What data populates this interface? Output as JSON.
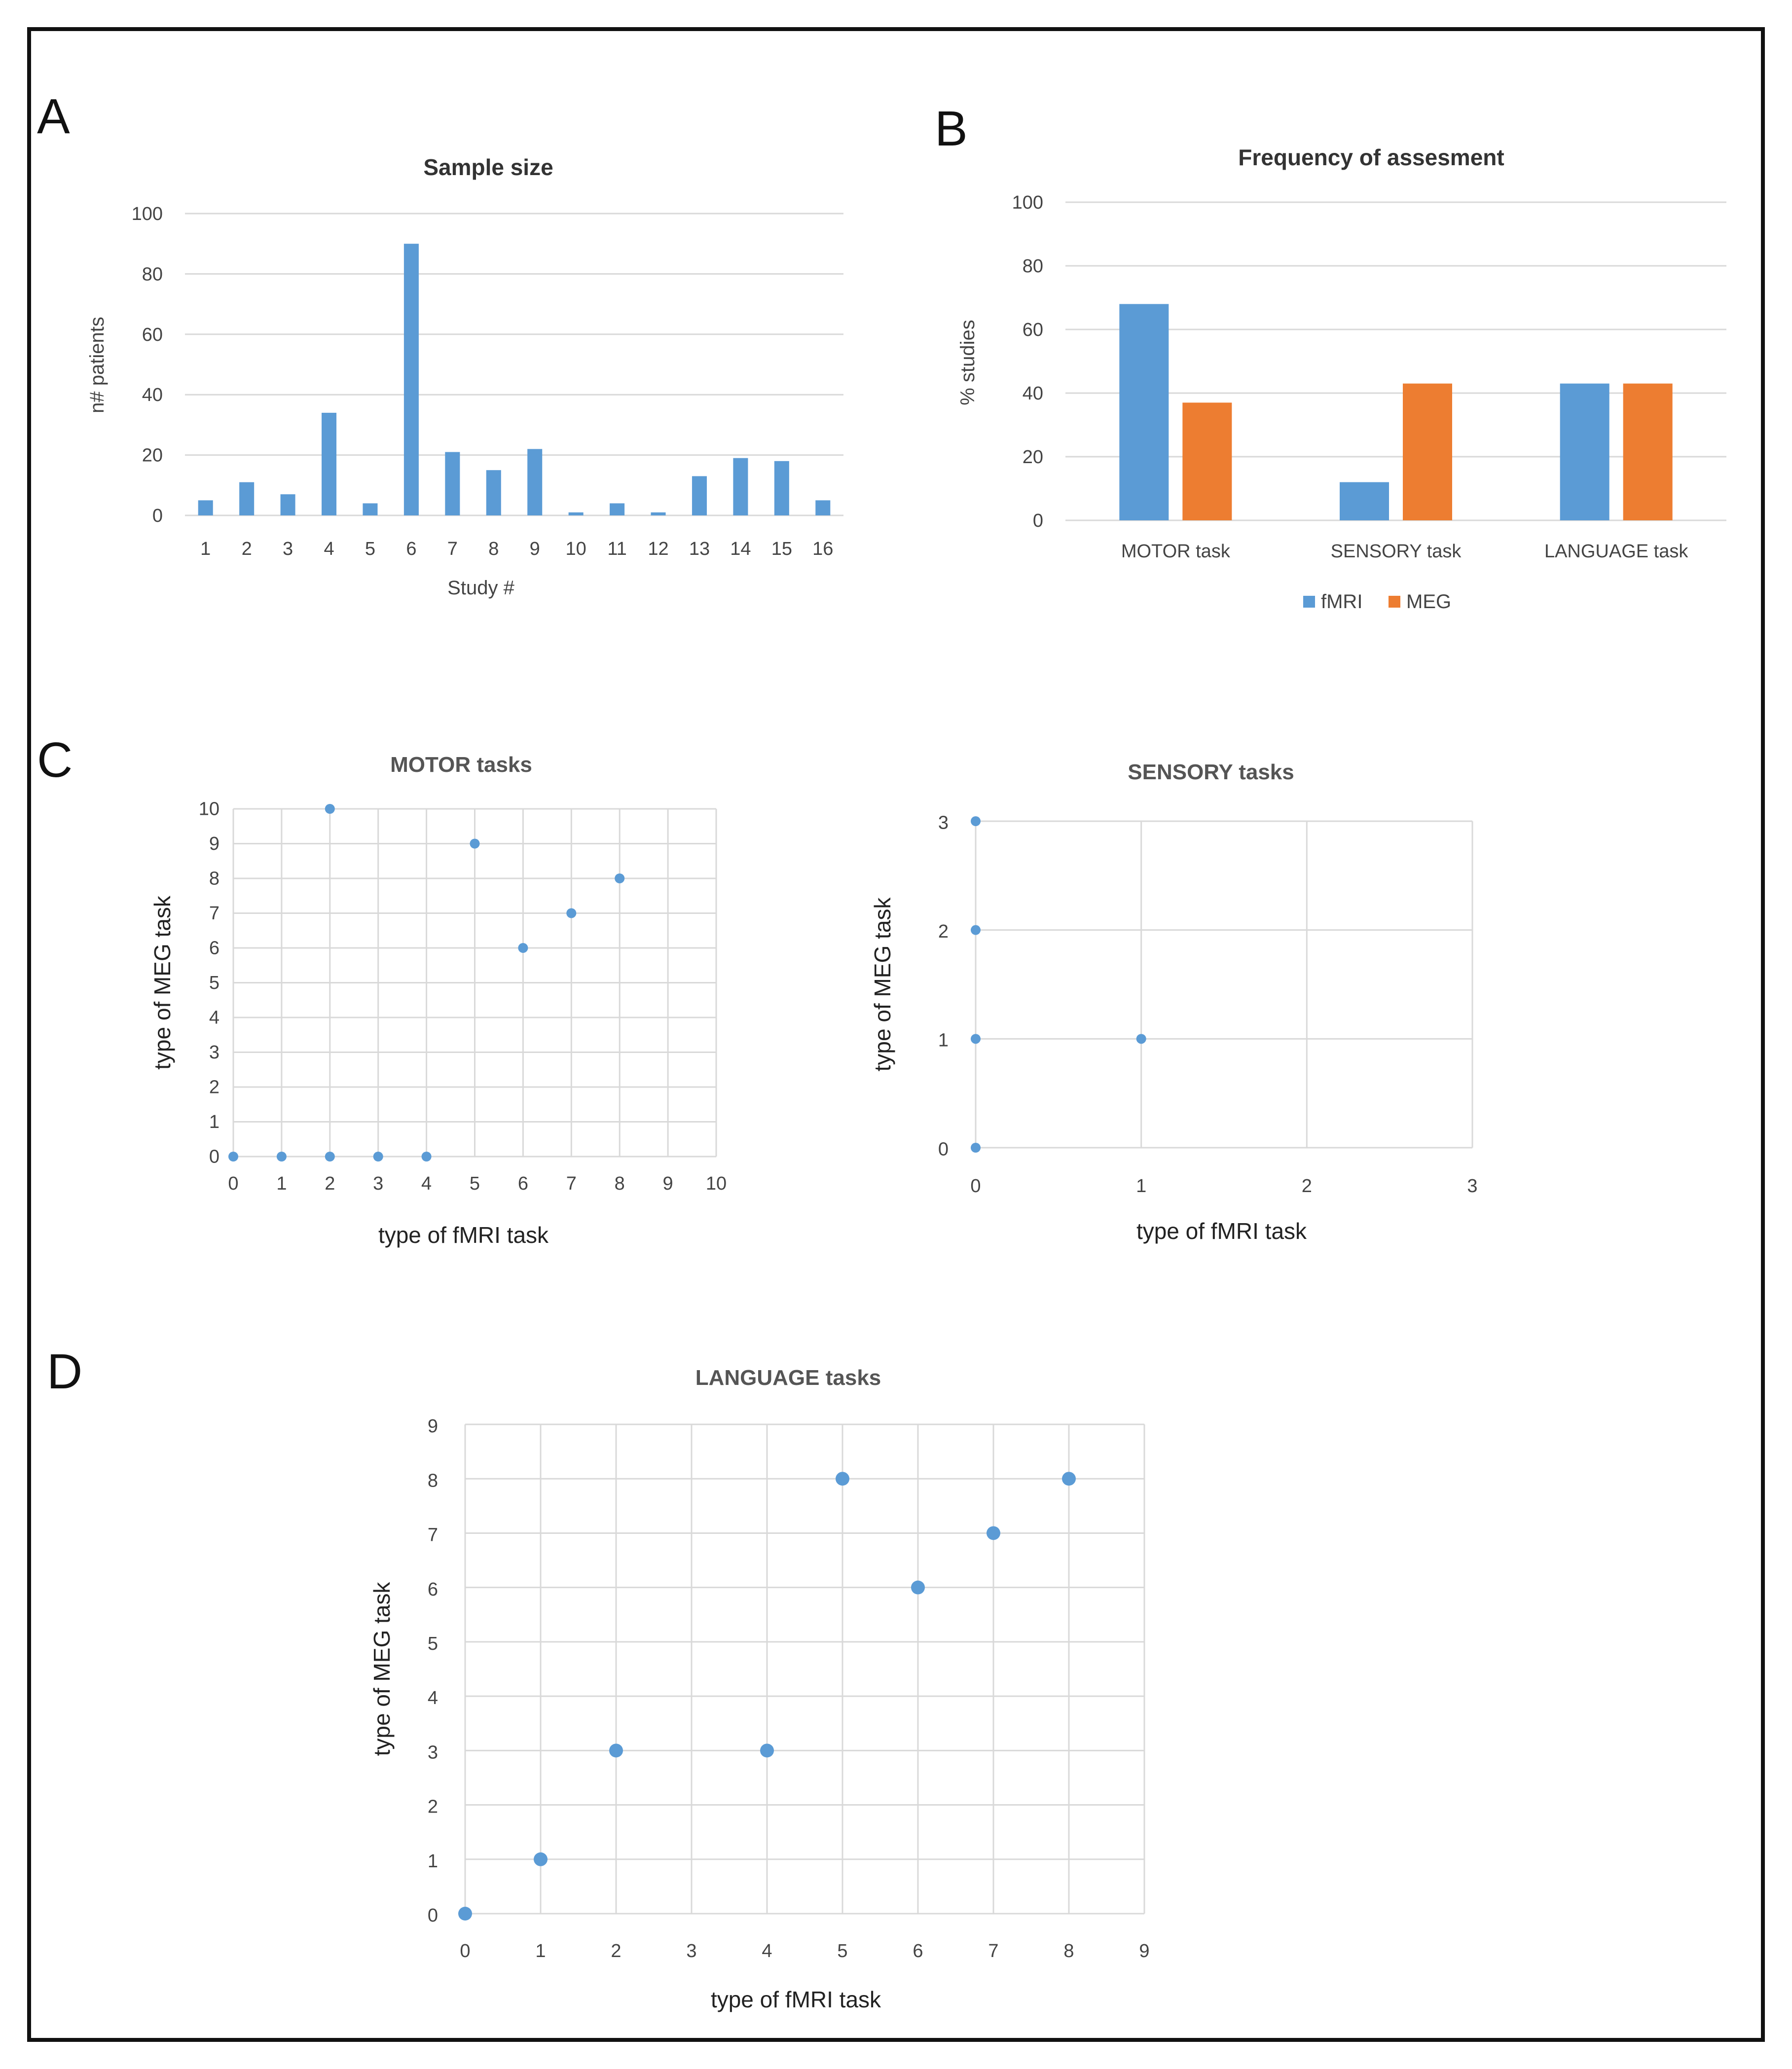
{
  "panels": {
    "a": "A",
    "b": "B",
    "c": "C",
    "d": "D"
  },
  "colors": {
    "blue": "#5b9bd5",
    "orange": "#ed7d31"
  },
  "chart_data": [
    {
      "id": "sample_size",
      "type": "bar",
      "title": "Sample size",
      "xlabel": "Study #",
      "ylabel": "n# patients",
      "categories": [
        "1",
        "2",
        "3",
        "4",
        "5",
        "6",
        "7",
        "8",
        "9",
        "10",
        "11",
        "12",
        "13",
        "14",
        "15",
        "16"
      ],
      "values": [
        5,
        11,
        7,
        34,
        4,
        90,
        21,
        15,
        22,
        1,
        4,
        1,
        13,
        19,
        18,
        5
      ],
      "ylim": [
        0,
        100
      ],
      "yticks": [
        0,
        20,
        40,
        60,
        80,
        100
      ],
      "grid": true
    },
    {
      "id": "frequency",
      "type": "bar",
      "title": "Frequency of assesment",
      "xlabel": "",
      "ylabel": "% studies",
      "categories": [
        "MOTOR  task",
        "SENSORY   task",
        "LANGUAGE   task"
      ],
      "series": [
        {
          "name": "fMRI",
          "values": [
            68,
            12,
            43
          ]
        },
        {
          "name": "MEG",
          "values": [
            37,
            43,
            43
          ]
        }
      ],
      "ylim": [
        0,
        100
      ],
      "yticks": [
        0,
        20,
        40,
        60,
        80,
        100
      ],
      "legend": "bottom",
      "grid": true
    },
    {
      "id": "motor",
      "type": "scatter",
      "title": "MOTOR tasks",
      "xlabel": "type of fMRI task",
      "ylabel": "type of MEG task",
      "points": [
        [
          0,
          0
        ],
        [
          1,
          0
        ],
        [
          2,
          0
        ],
        [
          3,
          0
        ],
        [
          4,
          0
        ],
        [
          2,
          10
        ],
        [
          5,
          9
        ],
        [
          6,
          6
        ],
        [
          7,
          7
        ],
        [
          8,
          8
        ]
      ],
      "xlim": [
        0,
        10
      ],
      "ylim": [
        0,
        10
      ],
      "xticks": [
        0,
        1,
        2,
        3,
        4,
        5,
        6,
        7,
        8,
        9,
        10
      ],
      "yticks": [
        0,
        1,
        2,
        3,
        4,
        5,
        6,
        7,
        8,
        9,
        10
      ],
      "grid": true
    },
    {
      "id": "sensory",
      "type": "scatter",
      "title": "SENSORY  tasks",
      "xlabel": "type of fMRI task",
      "ylabel": "type of MEG task",
      "points": [
        [
          0,
          0
        ],
        [
          0,
          1
        ],
        [
          0,
          2
        ],
        [
          0,
          3
        ],
        [
          1,
          1
        ]
      ],
      "xlim": [
        0,
        3
      ],
      "ylim": [
        0,
        3
      ],
      "xticks": [
        0,
        1,
        2,
        3
      ],
      "yticks": [
        0,
        1,
        2,
        3
      ],
      "grid": true
    },
    {
      "id": "language",
      "type": "scatter",
      "title": "LANGUAGE tasks",
      "xlabel": "type of fMRI task",
      "ylabel": "type of MEG task",
      "points": [
        [
          0,
          0
        ],
        [
          1,
          1
        ],
        [
          2,
          3
        ],
        [
          4,
          3
        ],
        [
          5,
          8
        ],
        [
          6,
          6
        ],
        [
          7,
          7
        ],
        [
          8,
          8
        ]
      ],
      "xlim": [
        0,
        9
      ],
      "ylim": [
        0,
        9
      ],
      "xticks": [
        0,
        1,
        2,
        3,
        4,
        5,
        6,
        7,
        8,
        9
      ],
      "yticks": [
        0,
        1,
        2,
        3,
        4,
        5,
        6,
        7,
        8,
        9
      ],
      "grid": true
    }
  ]
}
